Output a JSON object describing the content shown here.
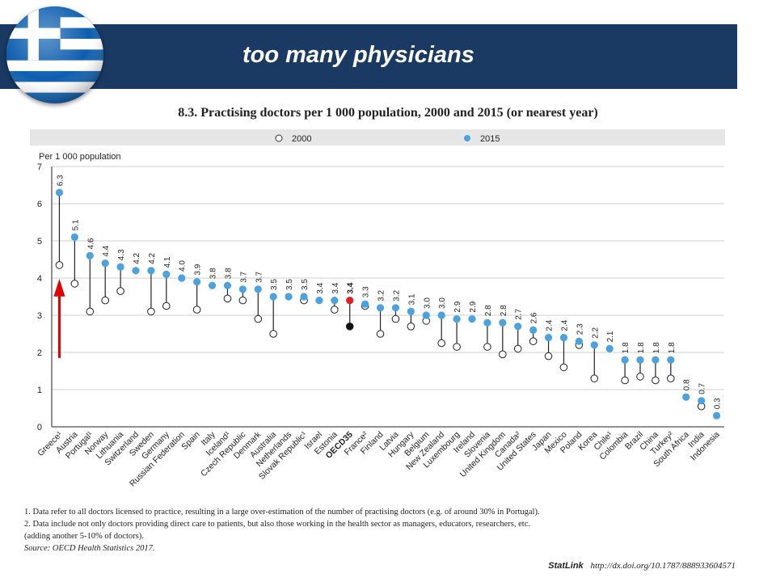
{
  "banner": {
    "title": "too many physicians"
  },
  "flag_icon": "greek-flag-icon",
  "colors": {
    "banner": "#1a3a63",
    "series2015": "#4aa3df",
    "oecd_2015": "#e02020",
    "oecd_2000": "#111111",
    "arrow": "#e00000"
  },
  "chart_data": {
    "type": "scatter",
    "title": "8.3. Practising doctors per 1 000 population, 2000 and 2015 (or nearest year)",
    "ylabel": "Per 1 000 population",
    "ylim": [
      0,
      7
    ],
    "yticks": [
      0,
      1,
      2,
      3,
      4,
      5,
      6,
      7
    ],
    "legend": {
      "position": "top",
      "entries": [
        "2000",
        "2015"
      ]
    },
    "categories": [
      "Greece¹",
      "Austria",
      "Portugal¹",
      "Norway",
      "Lithuania",
      "Switzerland",
      "Sweden",
      "Germany",
      "Russian Federation",
      "Spain",
      "Italy",
      "Iceland¹",
      "Czech Republic",
      "Denmark",
      "Australia",
      "Netherlands",
      "Slovak Republic¹",
      "Israel",
      "Estonia",
      "OECD35",
      "France²",
      "Finland",
      "Latvia",
      "Hungary",
      "Belgium",
      "New Zealand",
      "Luxembourg",
      "Ireland",
      "Slovenia",
      "United Kingdom",
      "Canada²",
      "United States",
      "Japan",
      "Mexico",
      "Poland",
      "Korea",
      "Chile¹",
      "Colombia",
      "Brazil",
      "China",
      "Turkey²",
      "South Africa",
      "India",
      "Indonesia"
    ],
    "series": [
      {
        "name": "2000",
        "values": [
          4.35,
          3.85,
          3.1,
          3.4,
          3.65,
          null,
          3.1,
          3.25,
          null,
          3.15,
          null,
          3.45,
          3.4,
          2.9,
          2.5,
          null,
          3.4,
          null,
          3.15,
          2.7,
          3.25,
          2.5,
          2.9,
          2.7,
          2.85,
          2.25,
          2.15,
          null,
          2.15,
          1.95,
          2.1,
          2.3,
          1.9,
          1.6,
          2.2,
          1.3,
          null,
          1.25,
          1.35,
          1.25,
          1.3,
          null,
          0.55,
          null
        ]
      },
      {
        "name": "2015",
        "values": [
          6.3,
          5.1,
          4.6,
          4.4,
          4.3,
          4.2,
          4.2,
          4.1,
          4.0,
          3.9,
          3.8,
          3.8,
          3.7,
          3.7,
          3.5,
          3.5,
          3.5,
          3.4,
          3.4,
          3.4,
          3.3,
          3.2,
          3.2,
          3.1,
          3.0,
          3.0,
          2.9,
          2.9,
          2.8,
          2.8,
          2.7,
          2.6,
          2.4,
          2.4,
          2.3,
          2.2,
          2.1,
          1.8,
          1.8,
          1.8,
          1.8,
          0.8,
          0.7,
          0.3
        ]
      }
    ],
    "labels": [
      "6.3",
      "5.1",
      "4.6",
      "4.4",
      "4.3",
      "4.2",
      "4.2",
      "4.1",
      "4.0",
      "3.9",
      "3.8",
      "3.8",
      "3.7",
      "3.7",
      "3.5",
      "3.5",
      "3.5",
      "3.4",
      "3.4",
      "3.4",
      "3.3",
      "3.2",
      "3.2",
      "3.1",
      "3.0",
      "3.0",
      "2.9",
      "2.9",
      "2.8",
      "2.8",
      "2.7",
      "2.6",
      "2.4",
      "2.4",
      "2.3",
      "2.2",
      "2.1",
      "1.8",
      "1.8",
      "1.8",
      "1.8",
      "0.8",
      "0.7",
      "0.3"
    ],
    "highlight": "OECD35",
    "annotation": {
      "type": "arrow",
      "target": "Greece¹"
    },
    "grid": true
  },
  "notes": [
    "1. Data refer to all doctors licensed to practice, resulting in a large over-estimation of the number of practising doctors (e.g. of around 30% in Portugal).",
    "2. Data include not only doctors providing direct care to patients, but also those working in the health sector as managers, educators, researchers, etc.",
    "(adding another 5-10% of doctors)."
  ],
  "source": "Source: OECD Health Statistics 2017.",
  "statlink": {
    "brand": "StatLink",
    "url": "http://dx.doi.org/10.1787/888933604571"
  }
}
